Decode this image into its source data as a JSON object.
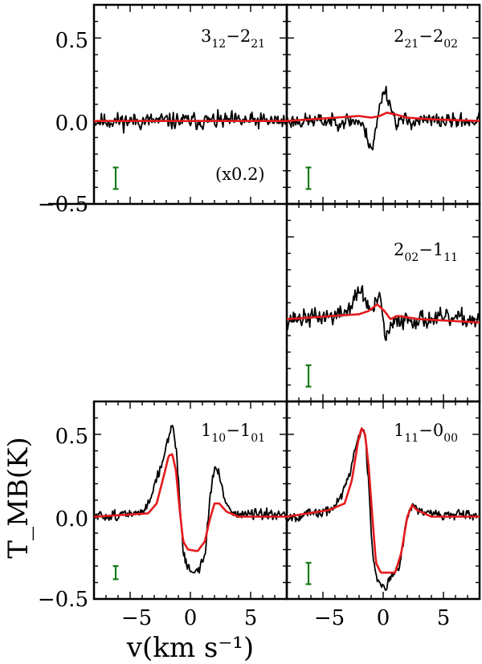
{
  "chart_data": {
    "type": "line",
    "xlabel": "v(km s⁻¹)",
    "ylabel": "T_MB(K)",
    "xlim": [
      -8,
      8
    ],
    "ylim": [
      -0.5,
      0.7
    ],
    "x_ticks": [
      -5,
      0,
      5
    ],
    "y_ticks": [
      -0.5,
      0.0,
      0.5
    ],
    "x_tick_labels": [
      "−5",
      "0",
      "5"
    ],
    "y_tick_labels": [
      "−0.5",
      "0.0",
      "0.5"
    ],
    "series_colors": {
      "observed": "#000000",
      "model": "#e41a1c",
      "error_bar": "#1a7a1a"
    },
    "panels": [
      {
        "id": "p312",
        "transition": {
          "upper": "3",
          "upper_sub": "12",
          "lower": "2",
          "lower_sub": "21"
        },
        "scale_note": "(x0.2)",
        "error_bar": {
          "x": -6.2,
          "y_low": -0.41,
          "y_high": -0.28
        },
        "observed": {
          "noise": 0.055,
          "seed": 11,
          "points": [
            [
              -8,
              0.0
            ],
            [
              8,
              0.0
            ]
          ]
        },
        "model": [
          [
            -8,
            0.0
          ],
          [
            8,
            0.0
          ]
        ]
      },
      {
        "id": "p221",
        "transition": {
          "upper": "2",
          "upper_sub": "21",
          "lower": "2",
          "lower_sub": "02"
        },
        "scale_note": "",
        "error_bar": {
          "x": -6.2,
          "y_low": -0.41,
          "y_high": -0.28
        },
        "observed": {
          "noise": 0.05,
          "seed": 23,
          "points": [
            [
              -8,
              0.0
            ],
            [
              -2.0,
              0.0
            ],
            [
              -1.4,
              -0.08
            ],
            [
              -0.9,
              -0.17
            ],
            [
              -0.6,
              -0.05
            ],
            [
              -0.2,
              0.12
            ],
            [
              0.1,
              0.2
            ],
            [
              0.5,
              0.12
            ],
            [
              1.0,
              0.0
            ],
            [
              8,
              0.0
            ]
          ]
        },
        "model": [
          [
            -8,
            0.0
          ],
          [
            -4,
            0.02
          ],
          [
            -2,
            0.03
          ],
          [
            -1.0,
            0.02
          ],
          [
            -0.3,
            0.03
          ],
          [
            0.3,
            0.05
          ],
          [
            1.0,
            0.04
          ],
          [
            2.0,
            0.02
          ],
          [
            4,
            0.01
          ],
          [
            8,
            0.0
          ]
        ]
      },
      {
        "id": "p202",
        "transition": {
          "upper": "2",
          "upper_sub": "02",
          "lower": "1",
          "lower_sub": "11"
        },
        "scale_note": "",
        "error_bar": {
          "x": -6.2,
          "y_low": -0.41,
          "y_high": -0.28
        },
        "observed": {
          "noise": 0.06,
          "seed": 37,
          "points": [
            [
              -8,
              0.0
            ],
            [
              -4,
              0.02
            ],
            [
              -3.0,
              0.05
            ],
            [
              -2.4,
              0.12
            ],
            [
              -1.9,
              0.18
            ],
            [
              -1.4,
              0.1
            ],
            [
              -0.9,
              0.04
            ],
            [
              -0.5,
              0.12
            ],
            [
              -0.2,
              0.1
            ],
            [
              0.2,
              -0.12
            ],
            [
              0.7,
              -0.05
            ],
            [
              1.2,
              0.0
            ],
            [
              8,
              0.0
            ]
          ]
        },
        "model": [
          [
            -8,
            0.0
          ],
          [
            -4,
            0.02
          ],
          [
            -2.0,
            0.03
          ],
          [
            -1.2,
            0.05
          ],
          [
            -0.5,
            0.09
          ],
          [
            0.1,
            0.05
          ],
          [
            0.6,
            0.0
          ],
          [
            1.2,
            0.02
          ],
          [
            3,
            0.0
          ],
          [
            8,
            -0.02
          ]
        ]
      },
      {
        "id": "p110",
        "transition": {
          "upper": "1",
          "upper_sub": "10",
          "lower": "1",
          "lower_sub": "01"
        },
        "scale_note": "",
        "error_bar": {
          "x": -6.2,
          "y_low": -0.38,
          "y_high": -0.3
        },
        "observed": {
          "noise": 0.035,
          "seed": 51,
          "points": [
            [
              -8,
              0.0
            ],
            [
              -4.0,
              0.02
            ],
            [
              -3.4,
              0.1
            ],
            [
              -3.0,
              0.2
            ],
            [
              -2.4,
              0.3
            ],
            [
              -1.9,
              0.47
            ],
            [
              -1.5,
              0.55
            ],
            [
              -1.2,
              0.45
            ],
            [
              -0.9,
              0.1
            ],
            [
              -0.6,
              -0.2
            ],
            [
              -0.2,
              -0.32
            ],
            [
              0.6,
              -0.33
            ],
            [
              1.2,
              -0.25
            ],
            [
              1.6,
              0.1
            ],
            [
              2.0,
              0.3
            ],
            [
              2.4,
              0.25
            ],
            [
              2.9,
              0.1
            ],
            [
              3.5,
              0.02
            ],
            [
              8,
              0.0
            ]
          ]
        },
        "model": [
          [
            -8,
            0.0
          ],
          [
            -3.5,
            0.02
          ],
          [
            -2.8,
            0.08
          ],
          [
            -2.2,
            0.25
          ],
          [
            -1.8,
            0.37
          ],
          [
            -1.5,
            0.38
          ],
          [
            -1.2,
            0.28
          ],
          [
            -0.9,
            0.05
          ],
          [
            -0.6,
            -0.15
          ],
          [
            -0.2,
            -0.2
          ],
          [
            0.6,
            -0.21
          ],
          [
            1.2,
            -0.15
          ],
          [
            1.6,
            -0.02
          ],
          [
            2.0,
            0.08
          ],
          [
            2.4,
            0.08
          ],
          [
            3.0,
            0.03
          ],
          [
            4.0,
            0.0
          ],
          [
            8,
            0.0
          ]
        ]
      },
      {
        "id": "p111",
        "transition": {
          "upper": "1",
          "upper_sub": "11",
          "lower": "0",
          "lower_sub": "00"
        },
        "scale_note": "",
        "error_bar": {
          "x": -6.2,
          "y_low": -0.41,
          "y_high": -0.28
        },
        "observed": {
          "noise": 0.035,
          "seed": 67,
          "points": [
            [
              -8,
              0.0
            ],
            [
              -4.5,
              0.03
            ],
            [
              -3.5,
              0.12
            ],
            [
              -2.8,
              0.25
            ],
            [
              -2.2,
              0.45
            ],
            [
              -1.8,
              0.54
            ],
            [
              -1.5,
              0.48
            ],
            [
              -1.2,
              0.2
            ],
            [
              -0.9,
              -0.2
            ],
            [
              -0.5,
              -0.38
            ],
            [
              0.2,
              -0.42
            ],
            [
              0.8,
              -0.36
            ],
            [
              1.3,
              -0.3
            ],
            [
              1.8,
              -0.08
            ],
            [
              2.2,
              0.05
            ],
            [
              2.6,
              0.07
            ],
            [
              3.2,
              0.02
            ],
            [
              8,
              0.0
            ]
          ]
        },
        "model": [
          [
            -8,
            0.0
          ],
          [
            -4.5,
            0.04
          ],
          [
            -3.2,
            0.08
          ],
          [
            -2.6,
            0.22
          ],
          [
            -2.1,
            0.45
          ],
          [
            -1.8,
            0.54
          ],
          [
            -1.5,
            0.5
          ],
          [
            -1.2,
            0.3
          ],
          [
            -0.9,
            0.0
          ],
          [
            -0.6,
            -0.28
          ],
          [
            -0.2,
            -0.34
          ],
          [
            1.0,
            -0.34
          ],
          [
            1.5,
            -0.22
          ],
          [
            2.0,
            0.0
          ],
          [
            2.4,
            0.07
          ],
          [
            2.8,
            0.04
          ],
          [
            4.0,
            0.0
          ],
          [
            8,
            0.0
          ]
        ]
      }
    ]
  }
}
